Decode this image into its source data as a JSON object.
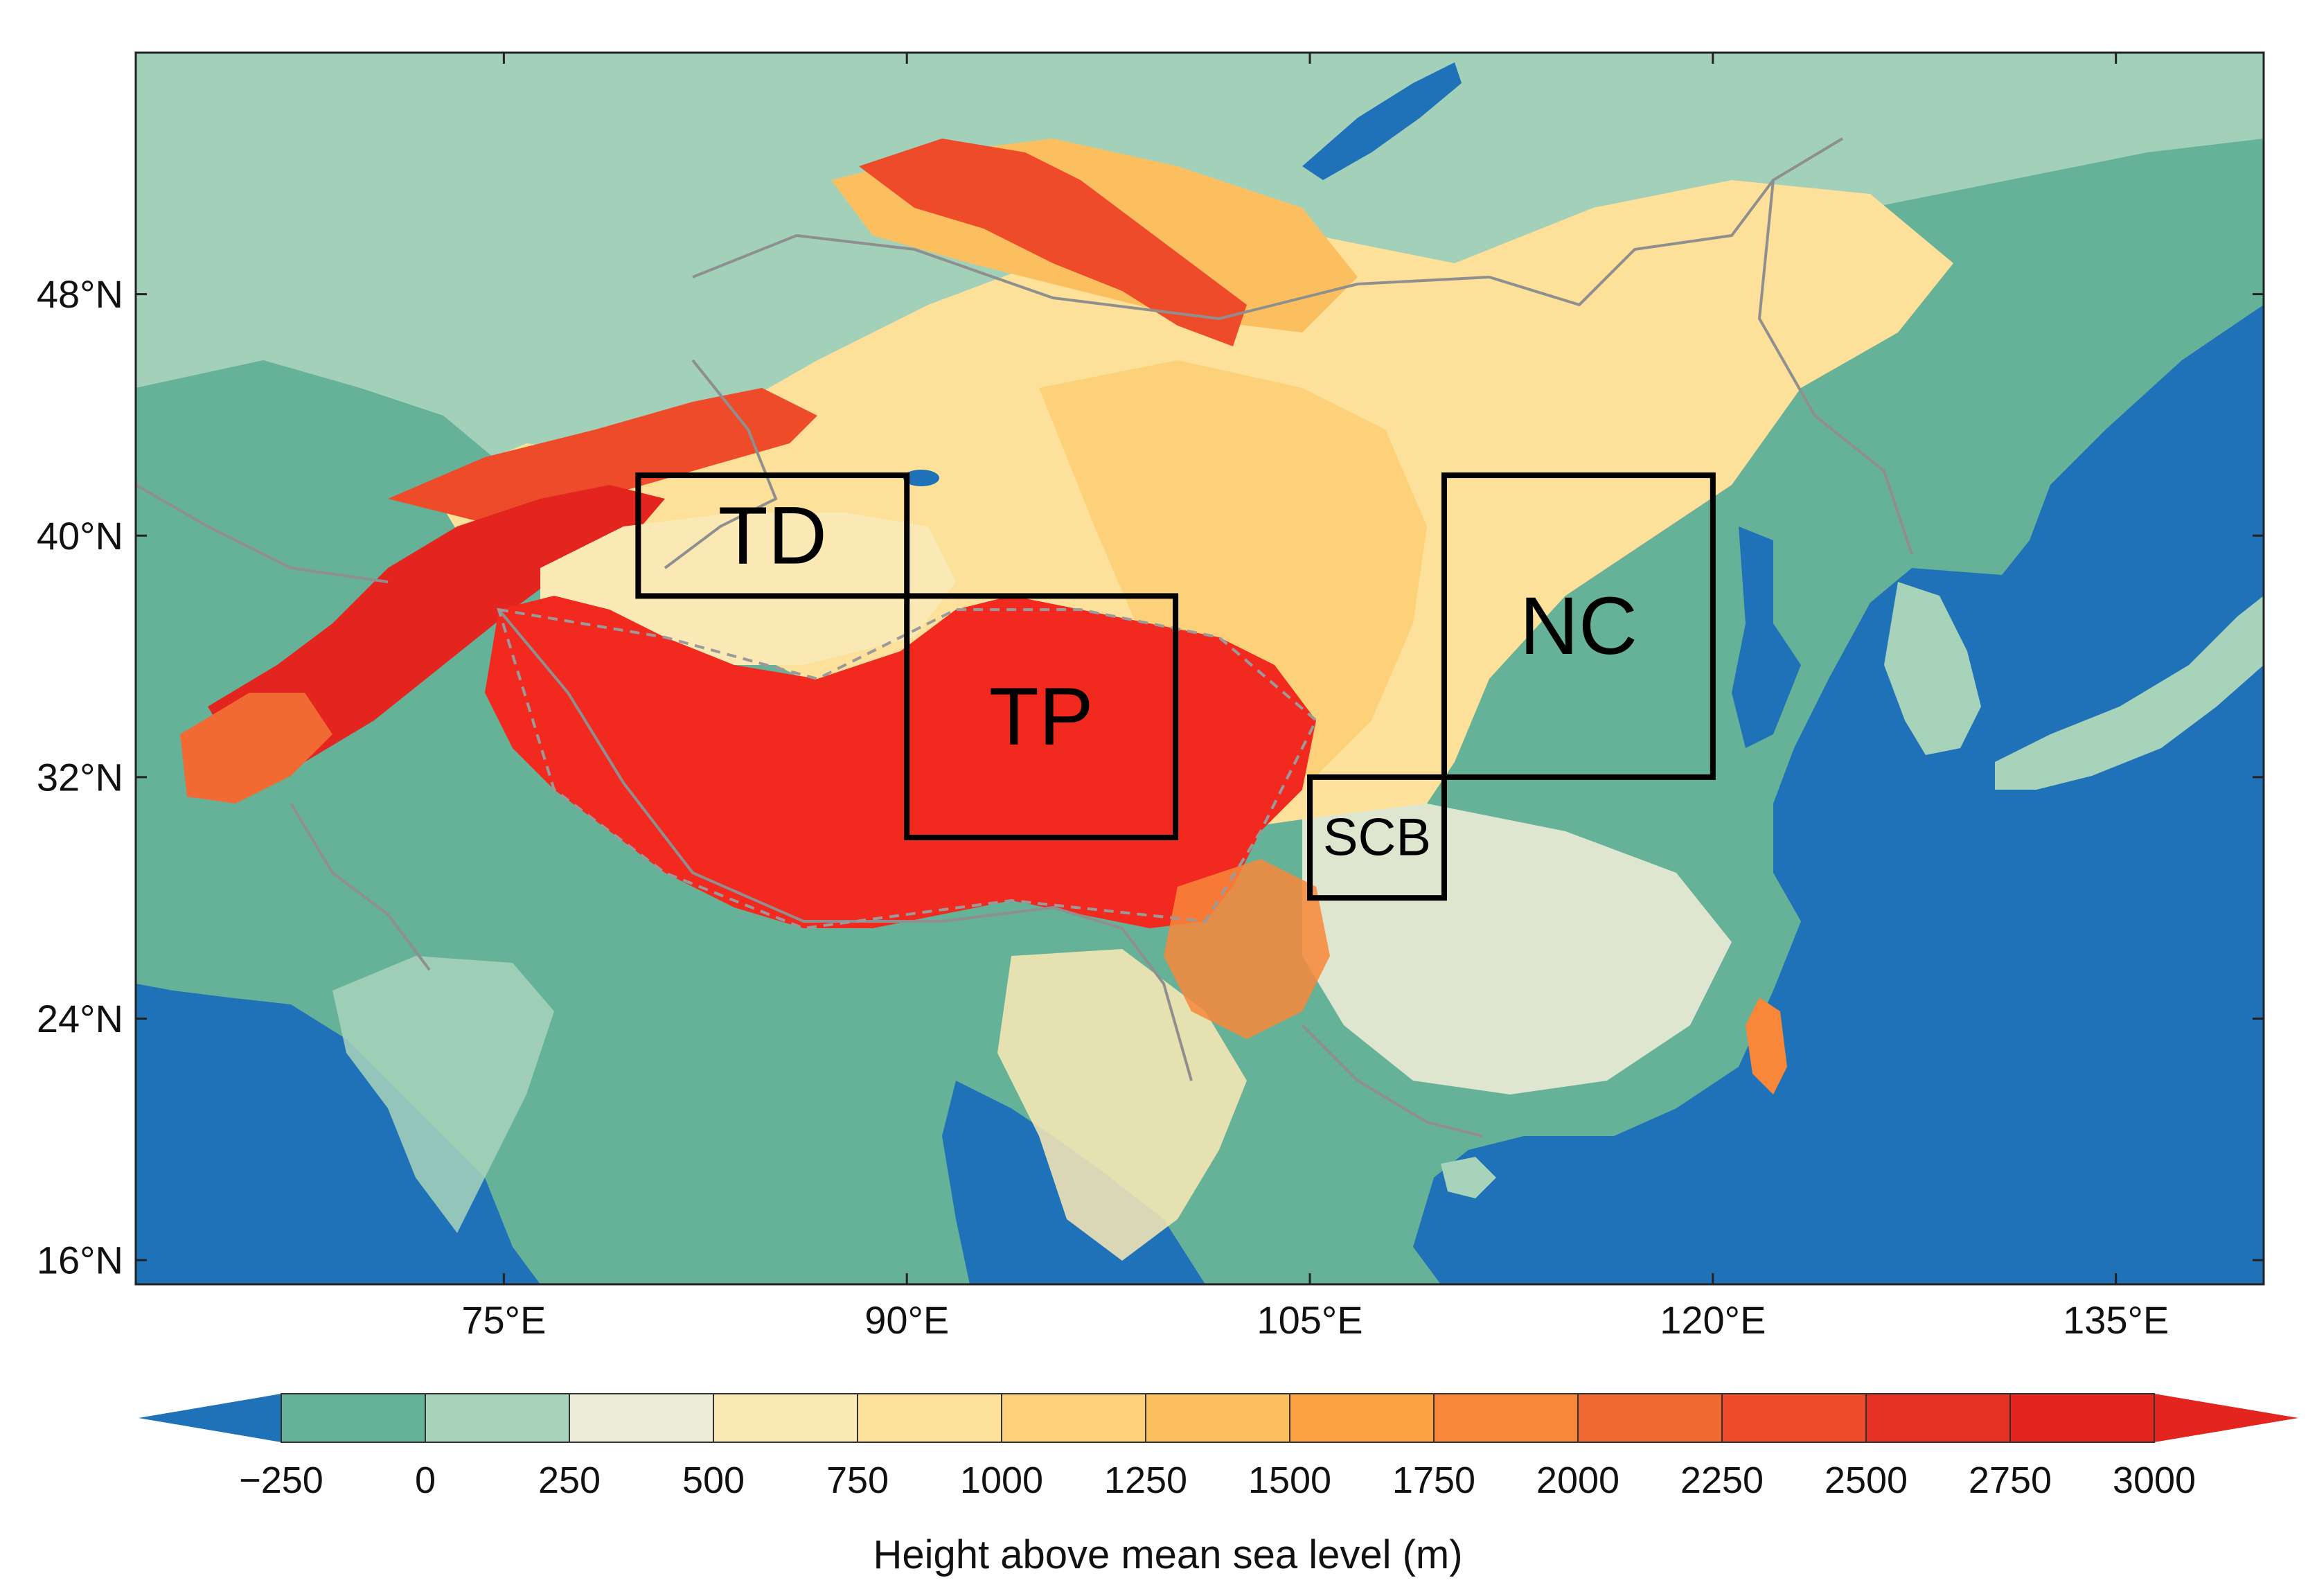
{
  "map": {
    "lat_ticks": [
      {
        "value": 48,
        "label": "48°N"
      },
      {
        "value": 40,
        "label": "40°N"
      },
      {
        "value": 32,
        "label": "32°N"
      },
      {
        "value": 24,
        "label": "24°N"
      },
      {
        "value": 16,
        "label": "16°N"
      }
    ],
    "lon_ticks": [
      {
        "value": 75,
        "label": "75°E"
      },
      {
        "value": 90,
        "label": "90°E"
      },
      {
        "value": 105,
        "label": "105°E"
      },
      {
        "value": 120,
        "label": "120°E"
      },
      {
        "value": 135,
        "label": "135°E"
      }
    ],
    "regions": [
      {
        "id": "TD",
        "label": "TD",
        "lon_min": 80,
        "lon_max": 90,
        "lat_min": 38,
        "lat_max": 42
      },
      {
        "id": "TP",
        "label": "TP",
        "lon_min": 90,
        "lon_max": 100,
        "lat_min": 30,
        "lat_max": 38
      },
      {
        "id": "SCB",
        "label": "SCB",
        "lon_min": 105,
        "lon_max": 110,
        "lat_min": 28,
        "lat_max": 32
      },
      {
        "id": "NC",
        "label": "NC",
        "lon_min": 110,
        "lon_max": 120,
        "lat_min": 32,
        "lat_max": 42
      }
    ]
  },
  "colorbar": {
    "title": "Height above mean sea level (m)",
    "tick_labels": [
      "−250",
      "0",
      "250",
      "500",
      "750",
      "1000",
      "1250",
      "1500",
      "1750",
      "2000",
      "2250",
      "2500",
      "2750",
      "3000"
    ],
    "colors": [
      "#1f72b8",
      "#66b298",
      "#a8d3bb",
      "#ecebd6",
      "#fbe9b5",
      "#fde09a",
      "#fdd07a",
      "#fcbf60",
      "#fca443",
      "#f8873a",
      "#f26a33",
      "#ee4b2b",
      "#e53227",
      "#e3241f"
    ],
    "over_color": "#e3241f",
    "under_color": "#1f72b8"
  },
  "colors": {
    "ocean": "#1f72b8",
    "lowland": "#66b298",
    "plateau": "#f1291f",
    "box": "#000000",
    "border": "#8f8f8f"
  }
}
